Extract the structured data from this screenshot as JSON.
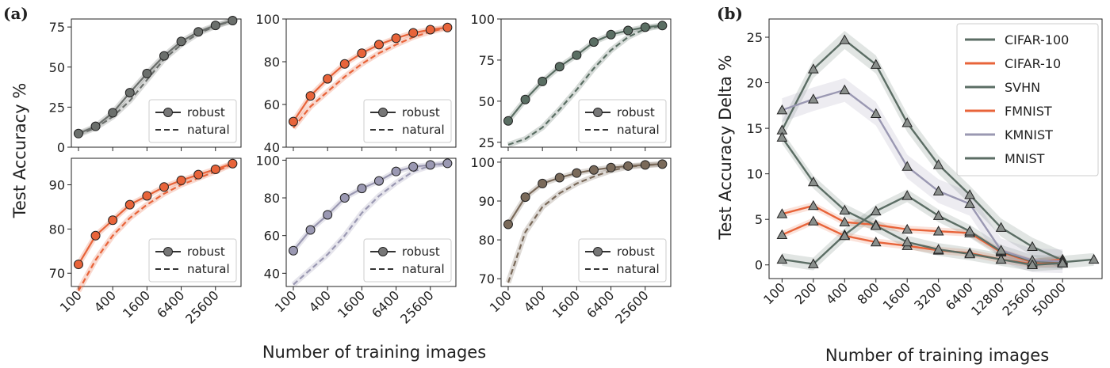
{
  "chart_data": [
    {
      "panel": "(a)",
      "type": "line",
      "grid": false,
      "ylabel": "Test Accuracy %",
      "xlabel": "Number of training images",
      "x_scale": "log2",
      "x": [
        100,
        200,
        400,
        800,
        1600,
        3200,
        6400,
        12800,
        25600,
        51200
      ],
      "x_tick_labels": [
        "100",
        "400",
        "1600",
        "6400",
        "25600"
      ],
      "legend": {
        "placement": "lower-right",
        "entries": [
          "robust",
          "natural"
        ]
      },
      "subplots": [
        {
          "row": 0,
          "col": 0,
          "color": "#6b6f6c",
          "ylim": [
            0,
            80
          ],
          "yticks": [
            0,
            25,
            50,
            75
          ],
          "series": [
            {
              "name": "robust",
              "style": "solid-circle",
              "values": [
                8.5,
                13,
                21.5,
                34,
                46,
                57,
                66,
                72,
                76,
                79
              ]
            },
            {
              "name": "natural",
              "style": "dashed",
              "values": [
                8,
                12,
                19,
                29,
                42,
                55,
                64,
                71,
                75.5,
                79
              ]
            }
          ]
        },
        {
          "row": 0,
          "col": 1,
          "color": "#e8643a",
          "ylim": [
            40,
            100
          ],
          "yticks": [
            40,
            60,
            80,
            100
          ],
          "series": [
            {
              "name": "robust",
              "style": "solid-circle",
              "values": [
                52,
                64,
                72,
                79,
                84,
                88,
                91,
                93.5,
                95,
                96
              ]
            },
            {
              "name": "natural",
              "style": "dashed",
              "values": [
                49,
                59,
                66,
                73,
                79,
                84,
                88,
                91.5,
                94,
                96
              ]
            }
          ]
        },
        {
          "row": 0,
          "col": 2,
          "color": "#5a6e63",
          "ylim": [
            22,
            100
          ],
          "yticks": [
            25,
            50,
            75,
            100
          ],
          "series": [
            {
              "name": "robust",
              "style": "solid-circle",
              "values": [
                38,
                51,
                62,
                71,
                78,
                86,
                90.5,
                93,
                95,
                96
              ]
            },
            {
              "name": "natural",
              "style": "dashed",
              "values": [
                23.5,
                27,
                34,
                45,
                57,
                70,
                81,
                89,
                94,
                96
              ]
            }
          ]
        },
        {
          "row": 1,
          "col": 0,
          "color": "#e8643a",
          "ylim": [
            67,
            96
          ],
          "yticks": [
            70,
            80,
            90
          ],
          "series": [
            {
              "name": "robust",
              "style": "solid-circle",
              "values": [
                72,
                78.5,
                82,
                85.5,
                87.5,
                89.5,
                91,
                92.3,
                93.5,
                94.8
              ]
            },
            {
              "name": "natural",
              "style": "dashed",
              "values": [
                66,
                73,
                78.5,
                82.5,
                85.5,
                88,
                90,
                91.5,
                93,
                94.7
              ]
            }
          ]
        },
        {
          "row": 1,
          "col": 1,
          "color": "#9a98b2",
          "ylim": [
            33,
            101
          ],
          "yticks": [
            40,
            60,
            80,
            100
          ],
          "series": [
            {
              "name": "robust",
              "style": "solid-circle",
              "values": [
                52,
                63,
                71,
                80,
                85,
                89,
                94,
                96.5,
                97.5,
                98.3
              ]
            },
            {
              "name": "natural",
              "style": "dashed",
              "values": [
                34,
                42,
                50,
                60,
                72,
                81,
                88,
                94,
                97,
                98.3
              ]
            }
          ]
        },
        {
          "row": 1,
          "col": 2,
          "color": "#7a6a5a",
          "ylim": [
            68,
            101
          ],
          "yticks": [
            70,
            80,
            90,
            100
          ],
          "series": [
            {
              "name": "robust",
              "style": "solid-circle",
              "values": [
                84,
                91,
                94.5,
                96,
                97.2,
                98,
                98.6,
                99,
                99.3,
                99.5
              ]
            },
            {
              "name": "natural",
              "style": "dashed",
              "values": [
                69,
                82,
                88.5,
                92,
                94.5,
                96.3,
                97.8,
                98.8,
                99.2,
                99.5
              ]
            }
          ]
        }
      ]
    },
    {
      "panel": "(b)",
      "type": "line",
      "grid": false,
      "ylabel": "Test Accuracy Delta %",
      "xlabel": "Number of training images",
      "x_scale": "log2",
      "x": [
        100,
        200,
        400,
        800,
        1600,
        3200,
        6400,
        12800,
        25600,
        50000,
        100000
      ],
      "x_tick_labels": [
        "100",
        "200",
        "400",
        "800",
        "1600",
        "3200",
        "6400",
        "12800",
        "25600",
        "50000"
      ],
      "ylim": [
        -1.5,
        27
      ],
      "yticks": [
        0,
        5,
        10,
        15,
        20,
        25
      ],
      "legend": {
        "placement": "top-right"
      },
      "series": [
        {
          "name": "CIFAR-100",
          "color": "#5b6d64",
          "band": 1.0,
          "x": [
            100,
            200,
            400,
            800,
            1600,
            3200,
            6400,
            12800,
            25600,
            50000
          ],
          "values": [
            14.8,
            21.5,
            24.7,
            22.0,
            15.6,
            11.0,
            7.7,
            4.1,
            2.0,
            0.5
          ]
        },
        {
          "name": "CIFAR-10",
          "color": "#e8643a",
          "band": 0.4,
          "x": [
            100,
            200,
            400,
            800,
            1600,
            3200,
            6400,
            12800,
            25600,
            50000
          ],
          "values": [
            5.6,
            6.5,
            4.7,
            4.4,
            3.9,
            3.7,
            3.5,
            1.4,
            0.3,
            0.6
          ]
        },
        {
          "name": "SVHN",
          "color": "#5b6d64",
          "band": 0.7,
          "x": [
            100,
            200,
            400,
            800,
            1600,
            3200,
            6400,
            12800,
            25600,
            50000,
            100000
          ],
          "values": [
            0.6,
            0.1,
            3.3,
            5.9,
            7.6,
            5.4,
            3.7,
            1.5,
            0.4,
            0.3,
            0.6
          ]
        },
        {
          "name": "FMNIST",
          "color": "#e8643a",
          "band": 0.4,
          "x": [
            100,
            200,
            400,
            800,
            1600,
            3200,
            6400,
            12800,
            25600,
            50000
          ],
          "values": [
            3.3,
            4.8,
            3.2,
            2.5,
            2.1,
            1.6,
            1.3,
            0.6,
            0.1,
            0.2
          ]
        },
        {
          "name": "KMNIST",
          "color": "#9a98b2",
          "band": 1.3,
          "x": [
            100,
            200,
            400,
            800,
            1600,
            3200,
            6400,
            12800,
            25600,
            50000
          ],
          "values": [
            17.0,
            18.2,
            19.2,
            16.6,
            10.8,
            8.1,
            6.7,
            1.6,
            0.5,
            0.4
          ]
        },
        {
          "name": "MNIST",
          "color": "#5b6d64",
          "band": 0.7,
          "x": [
            100,
            200,
            400,
            800,
            1600,
            3200,
            6400,
            12800,
            25600,
            50000
          ],
          "values": [
            14.0,
            9.1,
            6.0,
            4.3,
            2.5,
            1.7,
            1.2,
            0.6,
            0.0,
            0.2
          ]
        }
      ]
    }
  ]
}
